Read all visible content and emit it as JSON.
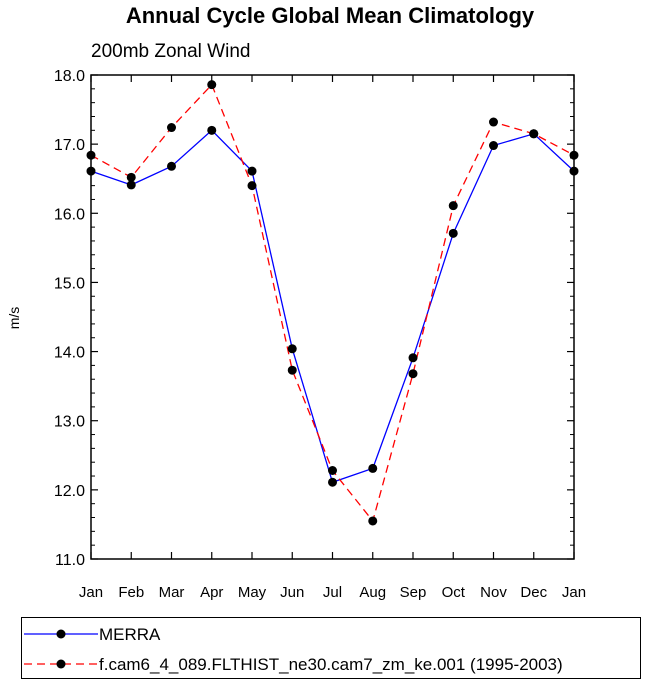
{
  "chart_data": {
    "type": "line",
    "title": "Annual Cycle Global Mean Climatology",
    "subtitle": "200mb Zonal Wind",
    "xlabel": "",
    "ylabel": "m/s",
    "categories": [
      "Jan",
      "Feb",
      "Mar",
      "Apr",
      "May",
      "Jun",
      "Jul",
      "Aug",
      "Sep",
      "Oct",
      "Nov",
      "Dec",
      "Jan"
    ],
    "ylim": [
      11.0,
      18.0
    ],
    "yticks": [
      "11.0",
      "12.0",
      "13.0",
      "14.0",
      "15.0",
      "16.0",
      "17.0",
      "18.0"
    ],
    "grid": false,
    "legend_position": "bottom",
    "series": [
      {
        "name": "MERRA",
        "color": "#0000ff",
        "dash": "solid",
        "values": [
          16.61,
          16.41,
          16.68,
          17.2,
          16.61,
          14.04,
          12.11,
          12.31,
          13.91,
          15.71,
          16.98,
          17.15,
          16.61
        ]
      },
      {
        "name": "f.cam6_4_089.FLTHIST_ne30.cam7_zm_ke.001 (1995-2003)",
        "color": "#ff0000",
        "dash": "dashed",
        "values": [
          16.84,
          16.52,
          17.24,
          17.86,
          16.4,
          13.73,
          12.28,
          11.55,
          13.68,
          16.11,
          17.32,
          17.15,
          16.84
        ]
      }
    ]
  }
}
